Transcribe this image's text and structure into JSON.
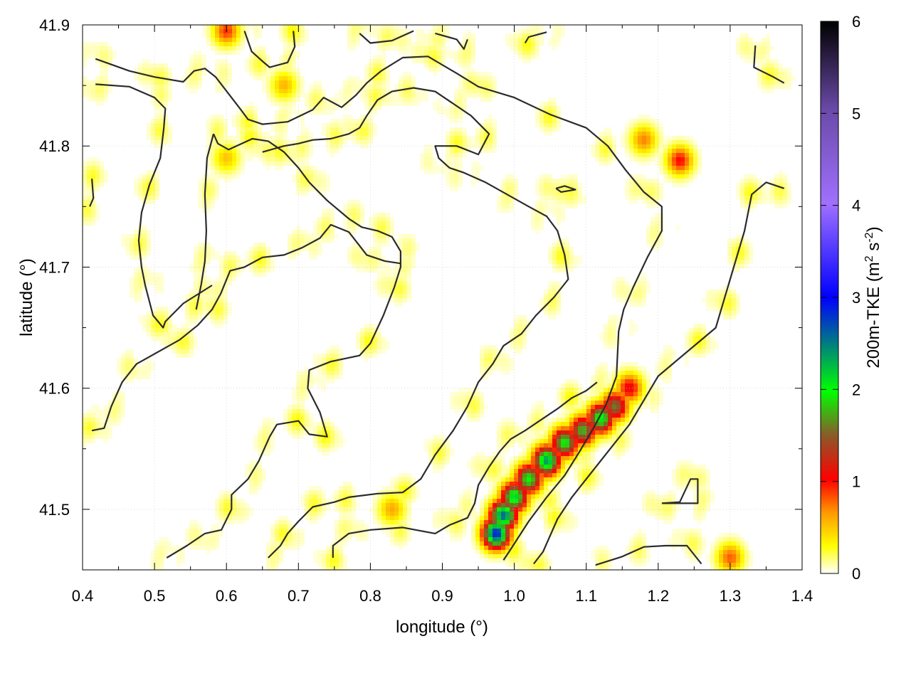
{
  "chart_data": {
    "type": "heatmap",
    "xlabel": "longitude (°)",
    "ylabel": "latitude (°)",
    "colorbar_label": "200m-TKE (m² s⁻²)",
    "colorbar_label_parts": {
      "main": "200m-TKE (m",
      "sup1": "2",
      "mid": " s",
      "sup2": "-2",
      "end": ")"
    },
    "xlim": [
      0.4,
      1.4
    ],
    "ylim": [
      41.45,
      41.9
    ],
    "clim": [
      0,
      6
    ],
    "x_ticks": [
      "0.4",
      "0.5",
      "0.6",
      "0.7",
      "0.8",
      "0.9",
      "1.0",
      "1.1",
      "1.2",
      "1.3",
      "1.4"
    ],
    "y_ticks": [
      "41.5",
      "41.6",
      "41.7",
      "41.8",
      "41.9"
    ],
    "colorbar_ticks": [
      "0",
      "1",
      "2",
      "3",
      "4",
      "5",
      "6"
    ],
    "colormap": [
      "#ffffff",
      "#ffff00",
      "#ff9900",
      "#ff0000",
      "#8a5a2a",
      "#00ff00",
      "#0000ff",
      "#a070ff",
      "#000000"
    ],
    "grid": true,
    "hotspots": [
      {
        "lon": 0.975,
        "lat": 41.48,
        "tke": 2.9
      },
      {
        "lon": 0.985,
        "lat": 41.495,
        "tke": 2.6
      },
      {
        "lon": 1.0,
        "lat": 41.51,
        "tke": 2.2
      },
      {
        "lon": 1.02,
        "lat": 41.525,
        "tke": 2.0
      },
      {
        "lon": 1.045,
        "lat": 41.54,
        "tke": 2.4
      },
      {
        "lon": 1.07,
        "lat": 41.555,
        "tke": 2.0
      },
      {
        "lon": 1.095,
        "lat": 41.565,
        "tke": 1.8
      },
      {
        "lon": 1.12,
        "lat": 41.575,
        "tke": 2.1
      },
      {
        "lon": 1.14,
        "lat": 41.585,
        "tke": 1.6
      },
      {
        "lon": 1.16,
        "lat": 41.6,
        "tke": 1.1
      },
      {
        "lon": 1.23,
        "lat": 41.788,
        "tke": 1.0
      },
      {
        "lon": 1.18,
        "lat": 41.805,
        "tke": 0.7
      },
      {
        "lon": 0.6,
        "lat": 41.895,
        "tke": 0.9
      },
      {
        "lon": 0.68,
        "lat": 41.85,
        "tke": 0.55
      },
      {
        "lon": 1.3,
        "lat": 41.46,
        "tke": 0.8
      },
      {
        "lon": 0.83,
        "lat": 41.5,
        "tke": 0.6
      },
      {
        "lon": 0.6,
        "lat": 41.79,
        "tke": 0.5
      }
    ],
    "contours": [
      [
        [
          0.418,
          41.872
        ],
        [
          0.465,
          41.862
        ],
        [
          0.5,
          41.857
        ],
        [
          0.54,
          41.853
        ],
        [
          0.555,
          41.862
        ],
        [
          0.57,
          41.864
        ],
        [
          0.585,
          41.857
        ],
        [
          0.62,
          41.83
        ],
        [
          0.63,
          41.822
        ],
        [
          0.65,
          41.818
        ],
        [
          0.685,
          41.82
        ],
        [
          0.72,
          41.83
        ],
        [
          0.735,
          41.84
        ],
        [
          0.76,
          41.832
        ],
        [
          0.78,
          41.842
        ],
        [
          0.795,
          41.852
        ],
        [
          0.815,
          41.862
        ],
        [
          0.845,
          41.873
        ],
        [
          0.88,
          41.874
        ],
        [
          0.92,
          41.86
        ],
        [
          0.95,
          41.849
        ],
        [
          1.0,
          41.84
        ],
        [
          1.05,
          41.826
        ],
        [
          1.1,
          41.815
        ],
        [
          1.13,
          41.8
        ],
        [
          1.155,
          41.78
        ],
        [
          1.18,
          41.762
        ],
        [
          1.205,
          41.75
        ],
        [
          1.205,
          41.73
        ],
        [
          1.185,
          41.708
        ],
        [
          1.165,
          41.683
        ],
        [
          1.152,
          41.665
        ],
        [
          1.145,
          41.647
        ],
        [
          1.142,
          41.61
        ],
        [
          1.128,
          41.587
        ],
        [
          1.11,
          41.567
        ],
        [
          1.09,
          41.547
        ],
        [
          1.07,
          41.528
        ],
        [
          1.045,
          41.51
        ],
        [
          1.02,
          41.49
        ],
        [
          0.995,
          41.467
        ],
        [
          0.985,
          41.458
        ]
      ],
      [
        [
          0.418,
          41.851
        ],
        [
          0.465,
          41.849
        ],
        [
          0.5,
          41.84
        ],
        [
          0.515,
          41.831
        ],
        [
          0.513,
          41.815
        ],
        [
          0.508,
          41.79
        ],
        [
          0.493,
          41.768
        ],
        [
          0.482,
          41.745
        ],
        [
          0.478,
          41.722
        ],
        [
          0.482,
          41.7
        ],
        [
          0.487,
          41.685
        ],
        [
          0.498,
          41.66
        ],
        [
          0.505,
          41.655
        ],
        [
          0.512,
          41.65
        ],
        [
          0.515,
          41.655
        ],
        [
          0.54,
          41.67
        ],
        [
          0.58,
          41.685
        ]
      ],
      [
        [
          0.517,
          41.46
        ],
        [
          0.545,
          41.47
        ],
        [
          0.57,
          41.48
        ],
        [
          0.593,
          41.483
        ],
        [
          0.607,
          41.5
        ],
        [
          0.607,
          41.512
        ],
        [
          0.63,
          41.525
        ],
        [
          0.645,
          41.54
        ],
        [
          0.66,
          41.56
        ],
        [
          0.67,
          41.57
        ],
        [
          0.7,
          41.573
        ],
        [
          0.715,
          41.562
        ],
        [
          0.74,
          41.56
        ],
        [
          0.73,
          41.58
        ],
        [
          0.713,
          41.6
        ],
        [
          0.715,
          41.615
        ],
        [
          0.745,
          41.622
        ],
        [
          0.785,
          41.627
        ],
        [
          0.8,
          41.637
        ],
        [
          0.818,
          41.66
        ],
        [
          0.833,
          41.683
        ],
        [
          0.842,
          41.7
        ],
        [
          0.842,
          41.713
        ],
        [
          0.83,
          41.725
        ],
        [
          0.81,
          41.73
        ],
        [
          0.788,
          41.733
        ],
        [
          0.77,
          41.74
        ],
        [
          0.74,
          41.755
        ],
        [
          0.715,
          41.77
        ],
        [
          0.7,
          41.782
        ],
        [
          0.68,
          41.795
        ],
        [
          0.658,
          41.804
        ],
        [
          0.636,
          41.806
        ],
        [
          0.603,
          41.797
        ],
        [
          0.588,
          41.802
        ],
        [
          0.582,
          41.81
        ]
      ],
      [
        [
          0.582,
          41.81
        ],
        [
          0.573,
          41.79
        ],
        [
          0.57,
          41.76
        ],
        [
          0.572,
          41.73
        ],
        [
          0.57,
          41.705
        ],
        [
          0.565,
          41.686
        ],
        [
          0.558,
          41.665
        ]
      ],
      [
        [
          0.413,
          41.565
        ],
        [
          0.43,
          41.567
        ],
        [
          0.44,
          41.585
        ],
        [
          0.455,
          41.605
        ],
        [
          0.475,
          41.62
        ],
        [
          0.505,
          41.63
        ],
        [
          0.535,
          41.64
        ],
        [
          0.56,
          41.652
        ],
        [
          0.58,
          41.665
        ],
        [
          0.592,
          41.678
        ],
        [
          0.605,
          41.697
        ],
        [
          0.625,
          41.7
        ],
        [
          0.65,
          41.708
        ],
        [
          0.68,
          41.71
        ],
        [
          0.705,
          41.716
        ],
        [
          0.73,
          41.724
        ],
        [
          0.745,
          41.735
        ],
        [
          0.77,
          41.729
        ],
        [
          0.795,
          41.71
        ],
        [
          0.82,
          41.705
        ],
        [
          0.842,
          41.703
        ]
      ],
      [
        [
          0.658,
          41.46
        ],
        [
          0.675,
          41.47
        ],
        [
          0.685,
          41.48
        ],
        [
          0.7,
          41.49
        ],
        [
          0.72,
          41.502
        ],
        [
          0.75,
          41.506
        ],
        [
          0.77,
          41.51
        ],
        [
          0.81,
          41.513
        ],
        [
          0.845,
          41.514
        ],
        [
          0.87,
          41.525
        ],
        [
          0.89,
          41.545
        ],
        [
          0.915,
          41.565
        ],
        [
          0.935,
          41.585
        ],
        [
          0.95,
          41.605
        ],
        [
          0.97,
          41.62
        ],
        [
          0.985,
          41.635
        ],
        [
          1.01,
          41.645
        ],
        [
          1.03,
          41.66
        ],
        [
          1.055,
          41.675
        ],
        [
          1.075,
          41.69
        ],
        [
          1.07,
          41.71
        ],
        [
          1.06,
          41.73
        ],
        [
          1.045,
          41.742
        ],
        [
          1.02,
          41.75
        ],
        [
          0.99,
          41.76
        ],
        [
          0.96,
          41.77
        ],
        [
          0.93,
          41.778
        ],
        [
          0.91,
          41.782
        ],
        [
          0.895,
          41.79
        ],
        [
          0.89,
          41.8
        ],
        [
          0.92,
          41.8
        ],
        [
          0.95,
          41.793
        ],
        [
          0.965,
          41.81
        ],
        [
          0.94,
          41.825
        ],
        [
          0.915,
          41.835
        ],
        [
          0.89,
          41.845
        ],
        [
          0.86,
          41.848
        ],
        [
          0.83,
          41.845
        ],
        [
          0.81,
          41.838
        ],
        [
          0.795,
          41.825
        ],
        [
          0.785,
          41.815
        ],
        [
          0.77,
          41.81
        ],
        [
          0.745,
          41.806
        ],
        [
          0.72,
          41.805
        ],
        [
          0.7,
          41.802
        ],
        [
          0.68,
          41.8
        ],
        [
          0.65,
          41.795
        ]
      ],
      [
        [
          0.748,
          41.46
        ],
        [
          0.748,
          41.47
        ],
        [
          0.77,
          41.48
        ],
        [
          0.8,
          41.483
        ],
        [
          0.845,
          41.485
        ],
        [
          0.89,
          41.48
        ],
        [
          0.91,
          41.487
        ],
        [
          0.935,
          41.493
        ],
        [
          0.945,
          41.505
        ],
        [
          0.95,
          41.52
        ],
        [
          0.965,
          41.535
        ],
        [
          0.98,
          41.548
        ],
        [
          0.995,
          41.558
        ],
        [
          1.015,
          41.565
        ],
        [
          1.04,
          41.575
        ],
        [
          1.06,
          41.583
        ],
        [
          1.08,
          41.592
        ],
        [
          1.1,
          41.598
        ],
        [
          1.115,
          41.605
        ]
      ],
      [
        [
          1.027,
          41.455
        ],
        [
          1.04,
          41.465
        ],
        [
          1.06,
          41.492
        ],
        [
          1.08,
          41.51
        ],
        [
          1.1,
          41.525
        ],
        [
          1.12,
          41.54
        ],
        [
          1.14,
          41.555
        ],
        [
          1.16,
          41.57
        ],
        [
          1.18,
          41.59
        ],
        [
          1.2,
          41.61
        ],
        [
          1.22,
          41.62
        ],
        [
          1.24,
          41.63
        ],
        [
          1.26,
          41.64
        ],
        [
          1.28,
          41.65
        ],
        [
          1.29,
          41.67
        ],
        [
          1.3,
          41.69
        ],
        [
          1.31,
          41.71
        ],
        [
          1.32,
          41.73
        ],
        [
          1.33,
          41.76
        ],
        [
          1.35,
          41.77
        ],
        [
          1.375,
          41.765
        ]
      ],
      [
        [
          1.113,
          41.454
        ],
        [
          1.15,
          41.461
        ],
        [
          1.18,
          41.469
        ],
        [
          1.21,
          41.47
        ],
        [
          1.24,
          41.47
        ],
        [
          1.26,
          41.455
        ]
      ],
      [
        [
          1.205,
          41.505
        ],
        [
          1.23,
          41.506
        ],
        [
          1.245,
          41.525
        ],
        [
          1.255,
          41.525
        ],
        [
          1.255,
          41.505
        ],
        [
          1.205,
          41.505
        ]
      ],
      [
        [
          1.058,
          41.765
        ],
        [
          1.07,
          41.767
        ],
        [
          1.085,
          41.764
        ],
        [
          1.065,
          41.762
        ],
        [
          1.058,
          41.765
        ]
      ],
      [
        [
          1.335,
          41.883
        ],
        [
          1.333,
          41.865
        ],
        [
          1.36,
          41.857
        ],
        [
          1.375,
          41.852
        ]
      ],
      [
        [
          0.413,
          41.773
        ],
        [
          0.415,
          41.757
        ],
        [
          0.41,
          41.75
        ]
      ],
      [
        [
          0.625,
          41.895
        ],
        [
          0.635,
          41.878
        ],
        [
          0.65,
          41.87
        ],
        [
          0.66,
          41.865
        ],
        [
          0.685,
          41.869
        ],
        [
          0.695,
          41.882
        ],
        [
          0.693,
          41.895
        ]
      ],
      [
        [
          0.785,
          41.893
        ],
        [
          0.8,
          41.885
        ],
        [
          0.83,
          41.887
        ],
        [
          0.86,
          41.895
        ]
      ],
      [
        [
          0.89,
          41.893
        ],
        [
          0.92,
          41.888
        ],
        [
          0.93,
          41.88
        ],
        [
          0.935,
          41.888
        ]
      ],
      [
        [
          1.015,
          41.885
        ],
        [
          1.02,
          41.89
        ],
        [
          1.045,
          41.894
        ]
      ]
    ]
  }
}
